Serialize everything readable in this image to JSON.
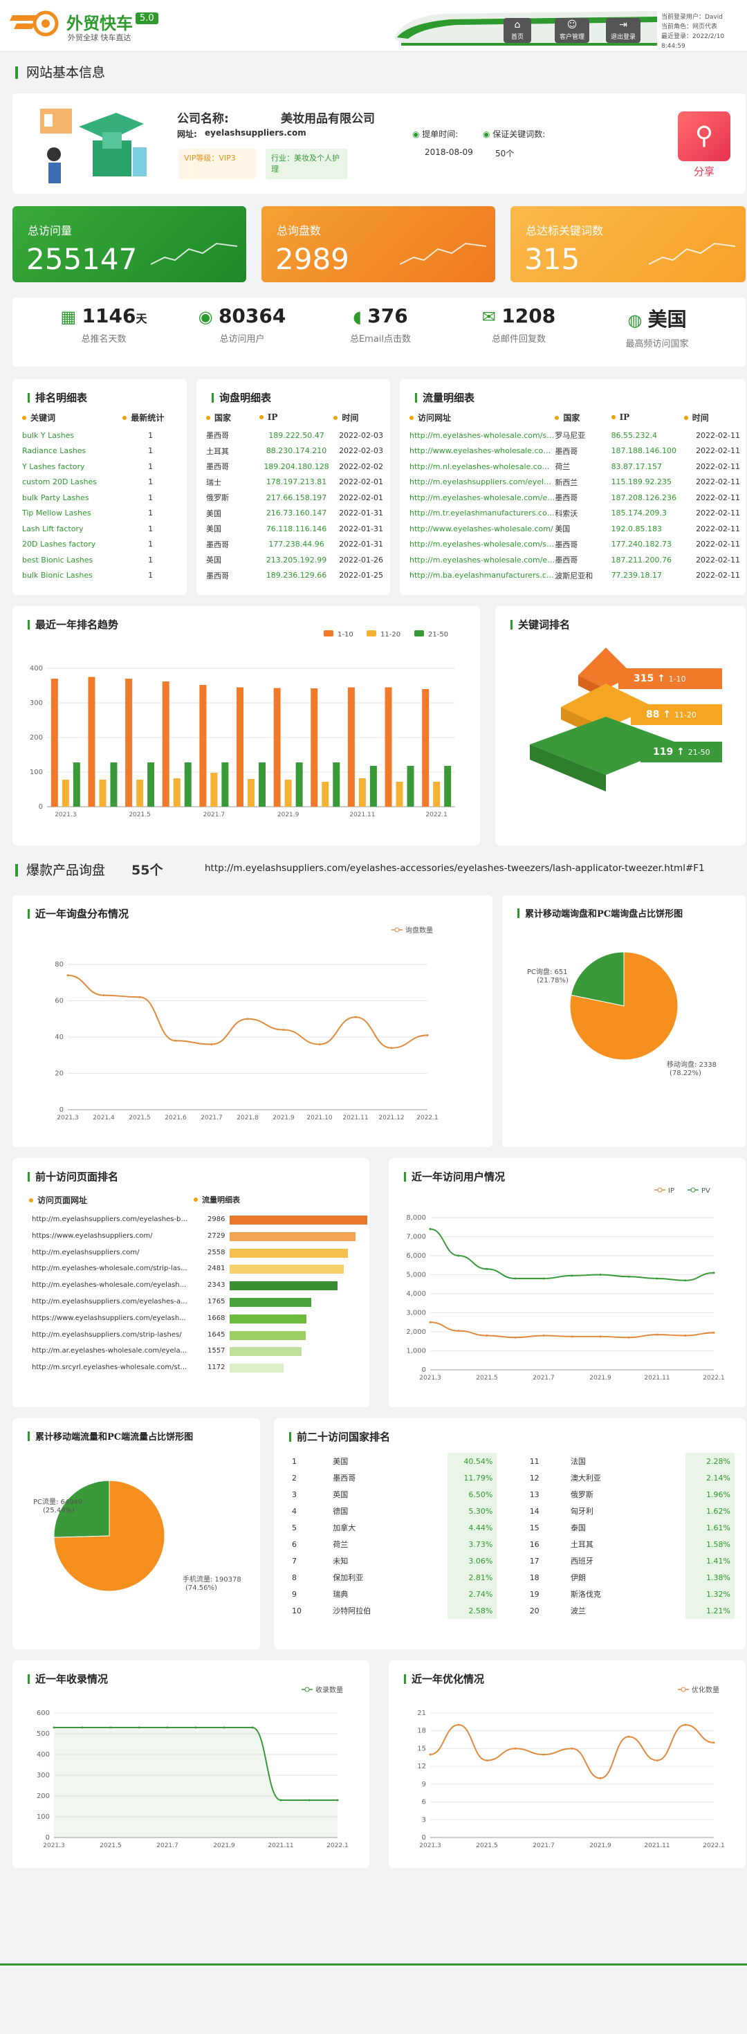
{
  "header": {
    "brand": "外贸快车",
    "version": "5.0",
    "slogan": "外贸全球 快车直达",
    "nav": [
      {
        "label": "首页"
      },
      {
        "label": "客户管理"
      },
      {
        "label": "退出登录"
      }
    ],
    "user_info": [
      "当前登录用户：David",
      "当前角色：网页代表",
      "最近登录：2022/2/10 8:44:59"
    ]
  },
  "site": {
    "title": "网站基本信息",
    "company_label": "公司名称:",
    "company": "美妆用品有限公司",
    "website_label": "网址:",
    "website": "eyelashsuppliers.com",
    "vip": "VIP等级：VIP3",
    "industry": "行业：美妆及个人护理",
    "open_time_label": "提单时间:",
    "open_time": "2018-08-09",
    "kw_label": "保证关键词数:",
    "kw": "50个",
    "share": "分享"
  },
  "stats": [
    {
      "label": "总访问量",
      "value": "255147"
    },
    {
      "label": "总询盘数",
      "value": "2989"
    },
    {
      "label": "总达标关键词数",
      "value": "315"
    }
  ],
  "mini_stats": [
    {
      "value": "1146",
      "unit": "天",
      "label": "总推名天数"
    },
    {
      "value": "80364",
      "unit": "",
      "label": "总访问用户"
    },
    {
      "value": "376",
      "unit": "",
      "label": "总Email点击数"
    },
    {
      "value": "1208",
      "unit": "",
      "label": "总邮件回复数"
    },
    {
      "value": "美国",
      "unit": "",
      "label": "最高频访问国家"
    }
  ],
  "rank_table": {
    "title": "排名明细表",
    "headers": [
      "关键词",
      "最新统计"
    ],
    "rows": [
      [
        "bulk Y Lashes",
        "1"
      ],
      [
        "Radiance Lashes",
        "1"
      ],
      [
        "Y Lashes factory",
        "1"
      ],
      [
        "custom 20D Lashes",
        "1"
      ],
      [
        "bulk Party Lashes",
        "1"
      ],
      [
        "Tip Mellow Lashes",
        "1"
      ],
      [
        "Lash Lift factory",
        "1"
      ],
      [
        "20D Lashes factory",
        "1"
      ],
      [
        "best Bionic Lashes",
        "1"
      ],
      [
        "bulk Bionic Lashes",
        "1"
      ]
    ]
  },
  "inquiry_table": {
    "title": "询盘明细表",
    "headers": [
      "国家",
      "IP",
      "时间"
    ],
    "rows": [
      [
        "墨西哥",
        "189.222.50.47",
        "2022-02-03"
      ],
      [
        "土耳其",
        "88.230.174.210",
        "2022-02-03"
      ],
      [
        "墨西哥",
        "189.204.180.128",
        "2022-02-02"
      ],
      [
        "瑞士",
        "178.197.213.81",
        "2022-02-01"
      ],
      [
        "俄罗斯",
        "217.66.158.197",
        "2022-02-01"
      ],
      [
        "美国",
        "216.73.160.147",
        "2022-01-31"
      ],
      [
        "美国",
        "76.118.116.146",
        "2022-01-31"
      ],
      [
        "墨西哥",
        "177.238.44.96",
        "2022-01-31"
      ],
      [
        "英国",
        "213.205.192.99",
        "2022-01-26"
      ],
      [
        "墨西哥",
        "189.236.129.66",
        "2022-01-25"
      ]
    ]
  },
  "traffic_table": {
    "title": "流量明细表",
    "headers": [
      "访问网址",
      "国家",
      "IP",
      "时间"
    ],
    "rows": [
      [
        "http://m.eyelashes-wholesale.com/strip-lashes/",
        "罗马尼亚",
        "86.55.232.4",
        "2022-02-11"
      ],
      [
        "http://www.eyelashes-wholesale.com/eyelash-extension/",
        "墨西哥",
        "187.188.146.100",
        "2022-02-11"
      ],
      [
        "http://m.nl.eyelashes-wholesale.com/nerts/",
        "荷兰",
        "83.87.17.157",
        "2022-02-11"
      ],
      [
        "http://m.eyelashsuppliers.com/eyelashes-accessories/",
        "新西兰",
        "115.189.92.235",
        "2022-02-11"
      ],
      [
        "http://m.eyelashes-wholesale.com/eyelash-extension/",
        "墨西哥",
        "187.208.126.236",
        "2022-02-11"
      ],
      [
        "http://m.tr.eyelashmanufacturers.com/",
        "科索沃",
        "185.174.209.3",
        "2022-02-11"
      ],
      [
        "http://www.eyelashes-wholesale.com/",
        "美国",
        "192.0.85.183",
        "2022-02-11"
      ],
      [
        "http://m.eyelashes-wholesale.com/strip-lashes/",
        "墨西哥",
        "177.240.182.73",
        "2022-02-11"
      ],
      [
        "http://m.eyelashes-wholesale.com/eyelash-extension/",
        "墨西哥",
        "187.211.200.76",
        "2022-02-11"
      ],
      [
        "http://m.ba.eyelashmanufacturers.com/",
        "波斯尼亚和",
        "77.239.18.17",
        "2022-02-11"
      ]
    ]
  },
  "rank_trend": {
    "title": "最近一年排名趋势"
  },
  "kw_rank": {
    "title": "关键词排名",
    "levels": [
      {
        "value": "315",
        "range": "1-10",
        "color": "#f07a2a"
      },
      {
        "value": "88",
        "range": "11-20",
        "color": "#f5a623"
      },
      {
        "value": "119",
        "range": "21-50",
        "color": "#3a9a3a"
      }
    ]
  },
  "hot": {
    "title": "爆款产品询盘",
    "count": "55个",
    "url": "http://m.eyelashsuppliers.com/eyelashes-accessories/eyelashes-tweezers/lash-applicator-tweezer.html#F1"
  },
  "inq_dist": {
    "title": "近一年询盘分布情况"
  },
  "mobile_pc_inq": {
    "title": "累计移动端询盘和PC端询盘占比饼形图",
    "pc_label": "PC询盘: 651",
    "pc_pct": "(21.78%)",
    "mobile_label": "移动询盘: 2338",
    "mobile_pct": "(78.22%)"
  },
  "top_pages": {
    "title": "前十访问页面排名",
    "col1": "访问页面网址",
    "col2": "流量明细表",
    "rows": [
      [
        "http://m.eyelashsuppliers.com/eyelashes-b...",
        "2986",
        "#e8782a"
      ],
      [
        "https://www.eyelashsuppliers.com/",
        "2729",
        "#f3a451"
      ],
      [
        "http://m.eyelashsuppliers.com/",
        "2558",
        "#f6c04f"
      ],
      [
        "http://m.eyelashes-wholesale.com/strip-las...",
        "2481",
        "#f5d067"
      ],
      [
        "http://m.eyelashes-wholesale.com/eyelash...",
        "2343",
        "#3a8f2e"
      ],
      [
        "http://m.eyelashsuppliers.com/eyelashes-a...",
        "1765",
        "#4aa33a"
      ],
      [
        "https://www.eyelashsuppliers.com/eyelash...",
        "1668",
        "#6cbb3c"
      ],
      [
        "http://m.eyelashsuppliers.com/strip-lashes/",
        "1645",
        "#9ccf63"
      ],
      [
        "http://m.ar.eyelashes-wholesale.com/eyela...",
        "1557",
        "#bfe09a"
      ],
      [
        "http://m.srcyrl.eyelashes-wholesale.com/st...",
        "1172",
        "#dcefc7"
      ]
    ]
  },
  "visit_users": {
    "title": "近一年访问用户情况"
  },
  "mobile_pc_flow": {
    "title": "累计移动端流量和PC端流量占比饼形图",
    "pc_label": "PC流量: 64949",
    "pc_pct": "(25.44%)",
    "mobile_label": "手机流量: 190378",
    "mobile_pct": "(74.56%)"
  },
  "top_countries": {
    "title": "前二十访问国家排名",
    "rows": [
      [
        "1",
        "美国",
        "40.54%",
        "11",
        "法国",
        "2.28%"
      ],
      [
        "2",
        "墨西哥",
        "11.79%",
        "12",
        "澳大利亚",
        "2.14%"
      ],
      [
        "3",
        "英国",
        "6.50%",
        "13",
        "俄罗斯",
        "1.96%"
      ],
      [
        "4",
        "德国",
        "5.30%",
        "14",
        "匈牙利",
        "1.62%"
      ],
      [
        "5",
        "加拿大",
        "4.44%",
        "15",
        "泰国",
        "1.61%"
      ],
      [
        "6",
        "荷兰",
        "3.73%",
        "16",
        "土耳其",
        "1.58%"
      ],
      [
        "7",
        "未知",
        "3.06%",
        "17",
        "西班牙",
        "1.41%"
      ],
      [
        "8",
        "保加利亚",
        "2.81%",
        "18",
        "伊朗",
        "1.38%"
      ],
      [
        "9",
        "瑞典",
        "2.74%",
        "19",
        "斯洛伐克",
        "1.32%"
      ],
      [
        "10",
        "沙特阿拉伯",
        "2.58%",
        "20",
        "波兰",
        "1.21%"
      ]
    ]
  },
  "indexed": {
    "title": "近一年收录情况"
  },
  "optimize": {
    "title": "近一年优化情况"
  },
  "chart_data": [
    {
      "id": "rank_trend",
      "type": "bar",
      "categories": [
        "2021.3",
        "2021.4",
        "2021.5",
        "2021.6",
        "2021.7",
        "2021.8",
        "2021.9",
        "2021.10",
        "2021.11",
        "2021.12",
        "2022.1"
      ],
      "xticks": [
        "2021.3",
        "2021.5",
        "2021.7",
        "2021.9",
        "2021.11",
        "2022.1"
      ],
      "ylim": [
        0,
        400
      ],
      "yticks": [
        0,
        100,
        200,
        300,
        400
      ],
      "series": [
        {
          "name": "1-10",
          "color": "#f07a2a",
          "values": [
            370,
            375,
            370,
            362,
            352,
            345,
            343,
            342,
            345,
            345,
            340
          ]
        },
        {
          "name": "11-20",
          "color": "#f5b133",
          "values": [
            78,
            78,
            78,
            82,
            98,
            80,
            78,
            72,
            82,
            72,
            72
          ]
        },
        {
          "name": "21-50",
          "color": "#3a9a3a",
          "values": [
            128,
            128,
            128,
            128,
            128,
            128,
            128,
            128,
            118,
            118,
            118
          ]
        }
      ],
      "legend": "top-right"
    },
    {
      "id": "inq_dist",
      "type": "line",
      "x": [
        "2021.3",
        "2021.4",
        "2021.5",
        "2021.6",
        "2021.7",
        "2021.8",
        "2021.9",
        "2021.10",
        "2021.11",
        "2021.12",
        "2022.1"
      ],
      "ylim": [
        0,
        80
      ],
      "yticks": [
        0,
        20,
        40,
        60,
        80
      ],
      "series": [
        {
          "name": "询盘数量",
          "color": "#e08a3c",
          "values": [
            74,
            63,
            62,
            38,
            36,
            50,
            44,
            36,
            51,
            34,
            41
          ]
        }
      ],
      "legend": "top-right"
    },
    {
      "id": "mobile_pc_inq",
      "type": "pie",
      "slices": [
        {
          "label": "PC询盘",
          "value": 651,
          "color": "#3a9a3a"
        },
        {
          "label": "移动询盘",
          "value": 2338,
          "color": "#f5901e"
        }
      ]
    },
    {
      "id": "visit_users",
      "type": "line",
      "x": [
        "2021.3",
        "2021.4",
        "2021.5",
        "2021.6",
        "2021.7",
        "2021.8",
        "2021.9",
        "2021.10",
        "2021.11",
        "2021.12",
        "2022.1"
      ],
      "xticks": [
        "2021.3",
        "2021.5",
        "2021.7",
        "2021.9",
        "2021.11",
        "2022.1"
      ],
      "ylim": [
        0,
        8000
      ],
      "yticks": [
        0,
        1000,
        2000,
        3000,
        4000,
        5000,
        6000,
        7000,
        8000
      ],
      "series": [
        {
          "name": "IP",
          "color": "#e08a3c",
          "values": [
            2500,
            2050,
            1800,
            1700,
            1800,
            1750,
            1750,
            1700,
            1850,
            1800,
            1950
          ]
        },
        {
          "name": "PV",
          "color": "#3a9a3a",
          "values": [
            7400,
            6000,
            5300,
            4800,
            4800,
            4950,
            5000,
            4900,
            4800,
            4700,
            5100
          ]
        }
      ],
      "legend": "top-right"
    },
    {
      "id": "mobile_pc_flow",
      "type": "pie",
      "slices": [
        {
          "label": "PC流量",
          "value": 64949,
          "color": "#3a9a3a"
        },
        {
          "label": "手机流量",
          "value": 190378,
          "color": "#f5901e"
        }
      ]
    },
    {
      "id": "indexed",
      "type": "area",
      "x": [
        "2021.3",
        "2021.4",
        "2021.5",
        "2021.6",
        "2021.7",
        "2021.8",
        "2021.9",
        "2021.10",
        "2021.11",
        "2021.12",
        "2022.1"
      ],
      "xticks": [
        "2021.3",
        "2021.5",
        "2021.7",
        "2021.9",
        "2021.11",
        "2022.1"
      ],
      "ylim": [
        0,
        600
      ],
      "yticks": [
        0,
        100,
        200,
        300,
        400,
        500,
        600
      ],
      "series": [
        {
          "name": "收录数量",
          "color": "#3a9a3a",
          "values": [
            530,
            530,
            530,
            530,
            530,
            530,
            530,
            530,
            180,
            180,
            180
          ]
        }
      ],
      "legend": "top-right"
    },
    {
      "id": "optimize",
      "type": "line",
      "x": [
        "2021.3",
        "2021.4",
        "2021.5",
        "2021.6",
        "2021.7",
        "2021.8",
        "2021.9",
        "2021.10",
        "2021.11",
        "2021.12",
        "2022.1"
      ],
      "xticks": [
        "2021.3",
        "2021.5",
        "2021.7",
        "2021.9",
        "2021.11",
        "2022.1"
      ],
      "ylim": [
        0,
        21
      ],
      "yticks": [
        0,
        3,
        6,
        9,
        12,
        15,
        18,
        21
      ],
      "series": [
        {
          "name": "优化数量",
          "color": "#e08a3c",
          "values": [
            14,
            19,
            13,
            15,
            14,
            15,
            10,
            17,
            13,
            19,
            16
          ]
        }
      ],
      "legend": "top-right"
    }
  ]
}
